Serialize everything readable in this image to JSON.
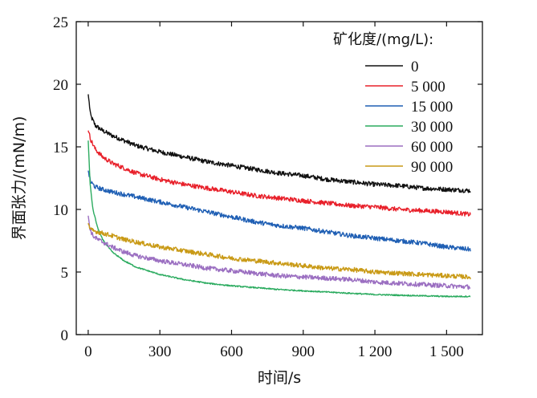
{
  "chart_data": {
    "type": "line",
    "xlabel": "时间/s",
    "ylabel": "界面张力/(mN/m)",
    "xlim": [
      -50,
      1650
    ],
    "ylim": [
      0,
      25
    ],
    "x_ticks": [
      0,
      300,
      600,
      900,
      1200,
      1500
    ],
    "x_tick_labels": [
      "0",
      "300",
      "600",
      "900",
      "1 200",
      "1 500"
    ],
    "y_ticks": [
      0,
      5,
      10,
      15,
      20,
      25
    ],
    "y_tick_labels": [
      "0",
      "5",
      "10",
      "15",
      "20",
      "25"
    ],
    "legend": {
      "title": "矿化度/(mg/L):",
      "position": "top-right"
    },
    "grid": false,
    "series": [
      {
        "name": "0",
        "color": "#111111",
        "x": [
          0,
          10,
          30,
          60,
          100,
          150,
          200,
          300,
          400,
          500,
          600,
          700,
          800,
          900,
          1000,
          1100,
          1200,
          1300,
          1400,
          1500,
          1600
        ],
        "y": [
          19.2,
          17.5,
          16.7,
          16.3,
          15.9,
          15.5,
          15.1,
          14.6,
          14.2,
          13.8,
          13.5,
          13.2,
          12.9,
          12.7,
          12.4,
          12.2,
          12.0,
          11.9,
          11.7,
          11.6,
          11.5
        ]
      },
      {
        "name": "5 000",
        "color": "#e8202a",
        "x": [
          0,
          10,
          30,
          60,
          100,
          150,
          200,
          300,
          400,
          500,
          600,
          700,
          800,
          900,
          1000,
          1100,
          1200,
          1300,
          1400,
          1500,
          1600
        ],
        "y": [
          16.3,
          15.6,
          14.8,
          14.2,
          13.7,
          13.3,
          12.9,
          12.4,
          12.0,
          11.7,
          11.4,
          11.1,
          10.9,
          10.7,
          10.5,
          10.3,
          10.2,
          10.0,
          9.9,
          9.8,
          9.6
        ]
      },
      {
        "name": "15 000",
        "color": "#1f5fb4",
        "x": [
          0,
          10,
          30,
          60,
          100,
          150,
          200,
          300,
          400,
          500,
          600,
          700,
          800,
          900,
          1000,
          1100,
          1200,
          1300,
          1400,
          1500,
          1600
        ],
        "y": [
          13.1,
          12.2,
          11.8,
          11.6,
          11.4,
          11.2,
          11.0,
          10.6,
          10.2,
          9.8,
          9.4,
          9.0,
          8.7,
          8.5,
          8.2,
          7.9,
          7.7,
          7.5,
          7.3,
          7.0,
          6.8
        ]
      },
      {
        "name": "30 000",
        "color": "#2bab5f",
        "x": [
          0,
          8,
          20,
          40,
          60,
          100,
          150,
          200,
          300,
          400,
          500,
          600,
          700,
          800,
          900,
          1000,
          1100,
          1200,
          1300,
          1400,
          1500,
          1600
        ],
        "y": [
          15.5,
          12.0,
          10.0,
          8.5,
          7.6,
          6.6,
          5.9,
          5.4,
          4.8,
          4.4,
          4.1,
          3.9,
          3.75,
          3.6,
          3.5,
          3.4,
          3.3,
          3.2,
          3.15,
          3.1,
          3.05,
          3.05
        ]
      },
      {
        "name": "60 000",
        "color": "#9b6fc1",
        "x": [
          0,
          8,
          20,
          40,
          60,
          100,
          150,
          200,
          300,
          400,
          500,
          600,
          700,
          800,
          900,
          1000,
          1100,
          1200,
          1300,
          1400,
          1500,
          1600
        ],
        "y": [
          9.5,
          8.4,
          7.9,
          7.6,
          7.4,
          7.0,
          6.6,
          6.3,
          5.9,
          5.6,
          5.3,
          5.1,
          4.9,
          4.7,
          4.6,
          4.5,
          4.4,
          4.2,
          4.1,
          4.0,
          3.9,
          3.8
        ]
      },
      {
        "name": "90 000",
        "color": "#c99a16",
        "x": [
          0,
          8,
          20,
          40,
          60,
          100,
          150,
          200,
          300,
          400,
          500,
          600,
          700,
          800,
          900,
          1000,
          1100,
          1200,
          1300,
          1400,
          1500,
          1600
        ],
        "y": [
          8.9,
          8.4,
          8.3,
          8.2,
          8.1,
          7.9,
          7.6,
          7.4,
          7.0,
          6.7,
          6.4,
          6.1,
          5.9,
          5.7,
          5.5,
          5.3,
          5.2,
          5.0,
          4.9,
          4.8,
          4.7,
          4.6
        ]
      }
    ]
  }
}
